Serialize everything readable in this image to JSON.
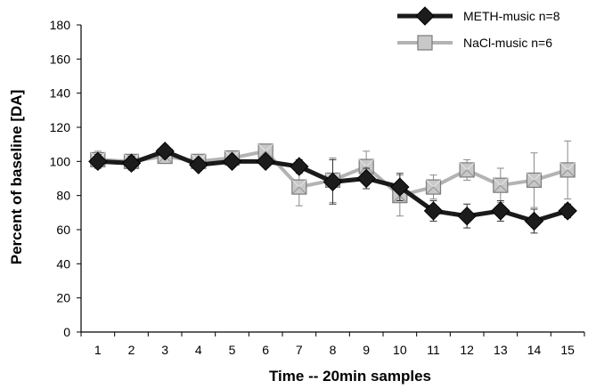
{
  "chart_data": {
    "type": "line",
    "xlabel": "Time  --  20min samples",
    "ylabel": "Percent of baseline  [DA]",
    "ylim": [
      0,
      180
    ],
    "yticks": [
      0,
      20,
      40,
      60,
      80,
      100,
      120,
      140,
      160,
      180
    ],
    "x": [
      1,
      2,
      3,
      4,
      5,
      6,
      7,
      8,
      9,
      10,
      11,
      12,
      13,
      14,
      15
    ],
    "grid": false,
    "legend_position": "top-right",
    "series": [
      {
        "name": "METH-music  n=8",
        "marker": "diamond",
        "color": "#1a1a1a",
        "values": [
          100,
          99,
          106,
          98,
          100,
          100,
          97,
          88,
          90,
          85,
          71,
          68,
          71,
          65,
          71
        ],
        "errors": [
          4,
          4,
          3,
          3,
          3,
          3,
          4,
          13,
          6,
          8,
          6,
          7,
          6,
          7,
          4
        ]
      },
      {
        "name": "NaCl-music  n=6",
        "marker": "square",
        "color": "#aaaaaa",
        "values": [
          101,
          100,
          103,
          100,
          102,
          106,
          85,
          89,
          97,
          80,
          85,
          95,
          86,
          89,
          95
        ],
        "errors": [
          5,
          4,
          3,
          3,
          3,
          3,
          11,
          13,
          9,
          12,
          7,
          6,
          10,
          16,
          17
        ]
      }
    ]
  }
}
